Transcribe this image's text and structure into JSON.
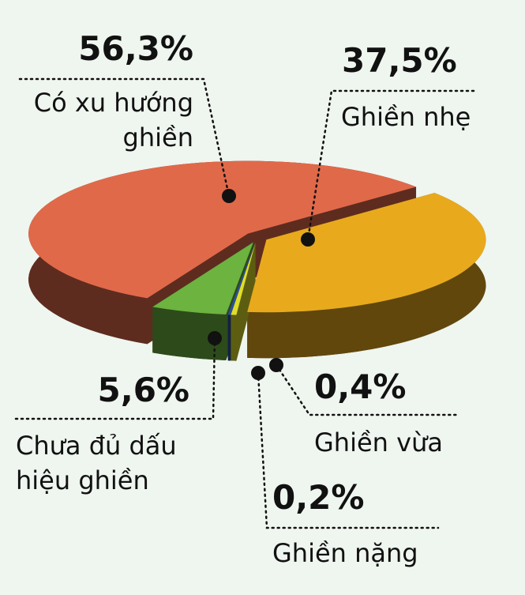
{
  "chart_data": {
    "type": "pie",
    "categories": [
      "Ghiền nhẹ",
      "Ghiền vừa",
      "Ghiền nặng",
      "Chưa đủ dấu hiệu ghiền",
      "Có xu hướng ghiền"
    ],
    "values": [
      37.5,
      0.4,
      0.2,
      5.6,
      56.3
    ],
    "value_labels": [
      "37,5%",
      "0,4%",
      "0,2%",
      "5,6%",
      "56,3%"
    ],
    "colors": [
      "#e8aa1c",
      "#dede2a",
      "#2c4fa3",
      "#6cb33f",
      "#e0694a"
    ]
  }
}
